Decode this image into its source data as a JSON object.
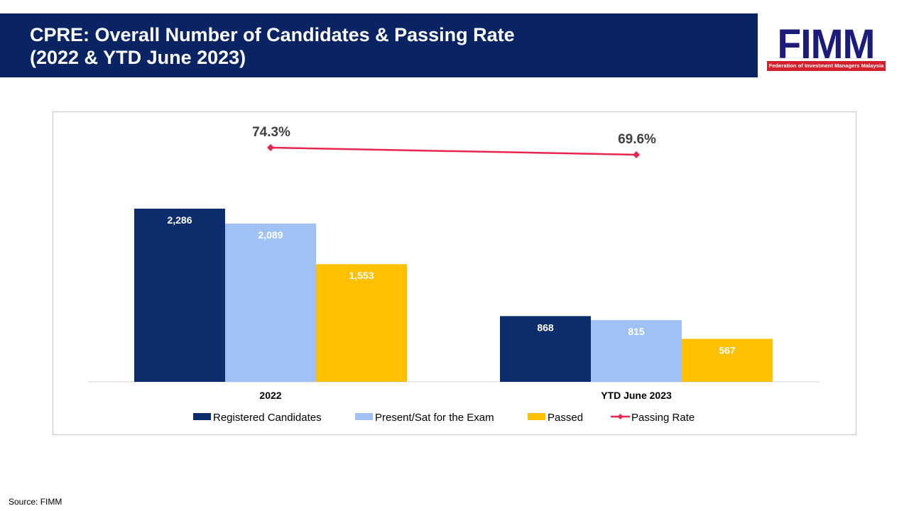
{
  "header": {
    "title_line1": "CPRE: Overall Number of Candidates & Passing Rate",
    "title_line2": "(2022 & YTD June 2023)",
    "band_color": "#0a2463"
  },
  "logo": {
    "wordmark": "FIMM",
    "tagline": "Federation of Investment Managers Malaysia",
    "brand_color": "#1b1b7a",
    "tag_color": "#d4202c"
  },
  "chart_data": {
    "type": "bar",
    "categories": [
      "2022",
      "YTD June 2023"
    ],
    "series": [
      {
        "name": "Registered Candidates",
        "type": "bar",
        "color": "#0c2d6b",
        "values": [
          2286,
          868
        ],
        "labels": [
          "2,286",
          "868"
        ]
      },
      {
        "name": "Present/Sat for the Exam",
        "type": "bar",
        "color": "#a0c1f4",
        "values": [
          2089,
          815
        ],
        "labels": [
          "2,089",
          "815"
        ]
      },
      {
        "name": "Passed",
        "type": "bar",
        "color": "#ffc000",
        "values": [
          1553,
          567
        ],
        "labels": [
          "1,553",
          "567"
        ]
      }
    ],
    "line_series": {
      "name": "Passing Rate",
      "type": "line",
      "color": "#e8254f",
      "values": [
        74.3,
        69.6
      ],
      "labels": [
        "74.3%",
        "69.6%"
      ]
    },
    "legend_position": "bottom",
    "grid": false
  },
  "footer": {
    "source": "Source: FIMM"
  }
}
